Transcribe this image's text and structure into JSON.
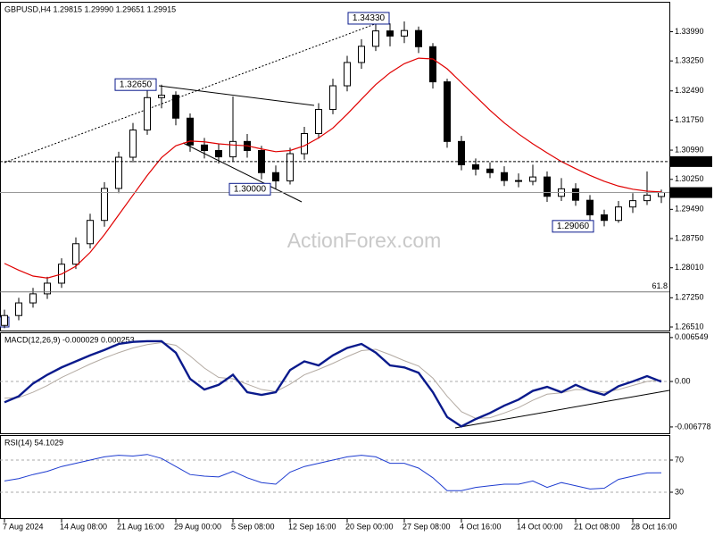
{
  "time_axis": {
    "labels": [
      "7 Aug 2024",
      "14 Aug 08:00",
      "21 Aug 16:00",
      "29 Aug 00:00",
      "5 Sep 08:00",
      "12 Sep 16:00",
      "20 Sep 00:00",
      "27 Sep 08:00",
      "4 Oct 16:00",
      "14 Oct 00:00",
      "21 Oct 08:00",
      "28 Oct 16:00"
    ]
  },
  "chart_data": [
    {
      "type": "candlestick",
      "title": "GBPUSD,H4  1.29815 1.29990 1.29651 1.29915",
      "open": [
        1.2655,
        1.268,
        1.2712,
        1.2735,
        1.2762,
        1.281,
        1.2862,
        1.2921,
        1.3002,
        1.3081,
        1.315,
        1.3232,
        1.3238,
        1.318,
        1.3112,
        1.3098,
        1.3082,
        1.3121,
        1.3098,
        1.3042,
        1.3021,
        1.309,
        1.3141,
        1.3202,
        1.3262,
        1.3321,
        1.3362,
        1.3401,
        1.3388,
        1.3402,
        1.3361,
        1.3272,
        1.3121,
        1.3062,
        1.3051,
        1.3042,
        1.3022,
        1.302,
        1.3031,
        1.2982,
        1.3001,
        1.2972,
        1.2935,
        1.2921,
        1.2955,
        1.2971,
        1.29815
      ],
      "high": [
        1.2695,
        1.2725,
        1.275,
        1.2778,
        1.2825,
        1.2878,
        1.2938,
        1.3018,
        1.3095,
        1.3168,
        1.325,
        1.3265,
        1.3248,
        1.3192,
        1.313,
        1.3115,
        1.3235,
        1.314,
        1.311,
        1.306,
        1.3105,
        1.3158,
        1.3218,
        1.328,
        1.3338,
        1.338,
        1.3433,
        1.342,
        1.3425,
        1.3412,
        1.337,
        1.328,
        1.3135,
        1.3078,
        1.3068,
        1.3058,
        1.304,
        1.3062,
        1.3045,
        1.3028,
        1.3015,
        1.2985,
        1.2948,
        1.297,
        1.299,
        1.3045,
        1.2999
      ],
      "low": [
        1.2648,
        1.2668,
        1.27,
        1.2722,
        1.275,
        1.2798,
        1.285,
        1.2905,
        1.299,
        1.3068,
        1.3138,
        1.3205,
        1.3162,
        1.3095,
        1.3078,
        1.3065,
        1.307,
        1.308,
        1.3025,
        1.3,
        1.3012,
        1.3075,
        1.3128,
        1.319,
        1.3248,
        1.3305,
        1.335,
        1.3362,
        1.337,
        1.3345,
        1.3255,
        1.3105,
        1.3048,
        1.3035,
        1.3028,
        1.3008,
        1.3005,
        1.301,
        1.2968,
        1.297,
        1.2958,
        1.292,
        1.2906,
        1.2915,
        1.294,
        1.296,
        1.29651
      ],
      "close": [
        1.268,
        1.2712,
        1.2735,
        1.2762,
        1.281,
        1.2862,
        1.2921,
        1.3002,
        1.3081,
        1.315,
        1.3232,
        1.3238,
        1.318,
        1.3112,
        1.3098,
        1.3082,
        1.3121,
        1.3098,
        1.3042,
        1.3021,
        1.309,
        1.3141,
        1.3202,
        1.3262,
        1.3321,
        1.3362,
        1.3401,
        1.3388,
        1.3402,
        1.3361,
        1.3272,
        1.3121,
        1.3062,
        1.3051,
        1.3042,
        1.3022,
        1.302,
        1.3031,
        1.2982,
        1.3001,
        1.2972,
        1.2935,
        1.2921,
        1.2955,
        1.2971,
        1.2985,
        1.29915
      ],
      "ma": {
        "color": "#e00000",
        "values": [
          1.2812,
          1.2795,
          1.278,
          1.2775,
          1.2785,
          1.2805,
          1.284,
          1.2885,
          1.2935,
          1.2985,
          1.3035,
          1.308,
          1.311,
          1.3122,
          1.312,
          1.3115,
          1.3112,
          1.311,
          1.3102,
          1.3095,
          1.3098,
          1.311,
          1.313,
          1.3155,
          1.319,
          1.3228,
          1.3265,
          1.3295,
          1.3318,
          1.3332,
          1.333,
          1.3305,
          1.327,
          1.3235,
          1.32,
          1.3168,
          1.314,
          1.3115,
          1.3092,
          1.307,
          1.3052,
          1.3035,
          1.302,
          1.3008,
          1.3,
          1.2995,
          1.2993
        ]
      },
      "ylim": [
        1.2642,
        1.3468
      ],
      "yticks": [
        {
          "value": 1.3399,
          "label": "1.33990"
        },
        {
          "value": 1.3325,
          "label": "1.33250"
        },
        {
          "value": 1.3249,
          "label": "1.32490"
        },
        {
          "value": 1.3175,
          "label": "1.31750"
        },
        {
          "value": 1.3099,
          "label": "1.30990"
        },
        {
          "value": 1.3025,
          "label": "1.30250"
        },
        {
          "value": 1.2949,
          "label": "1.29490"
        },
        {
          "value": 1.2875,
          "label": "1.28750"
        },
        {
          "value": 1.2801,
          "label": "1.28010"
        },
        {
          "value": 1.2725,
          "label": "1.27250"
        },
        {
          "value": 1.2651,
          "label": "1.26510"
        }
      ],
      "levels": [
        {
          "value": 1.307,
          "label": "1.30700",
          "style": "dashed"
        },
        {
          "value": 1.29915,
          "label": "1.29915",
          "style": "solid"
        },
        {
          "value": 1.274,
          "label": "61.8",
          "style": "fib"
        }
      ],
      "annotations": [
        {
          "value": 1.3433,
          "label": "1.34330"
        },
        {
          "value": 1.3265,
          "label": "1.32650"
        },
        {
          "value": 1.3,
          "label": "1.30000"
        },
        {
          "value": 1.2906,
          "label": "1.29060"
        }
      ],
      "edge_label": "0",
      "watermark": "ActionForex.com"
    },
    {
      "type": "macd",
      "title": "MACD(12,26,9) -0.000029 0.000253",
      "series": [
        {
          "color": "#0a1a8c",
          "values": [
            -0.0031,
            -0.0022,
            -0.0003,
            0.001,
            0.0021,
            0.003,
            0.0039,
            0.0047,
            0.0056,
            0.0059,
            0.006,
            0.006,
            0.0043,
            0.0004,
            -0.0012,
            -0.0005,
            0.001,
            -0.0016,
            -0.002,
            -0.0016,
            0.0017,
            0.003,
            0.0024,
            0.0039,
            0.005,
            0.0056,
            0.0043,
            0.0024,
            0.0021,
            0.0013,
            -0.0016,
            -0.0053,
            -0.0067,
            -0.0056,
            -0.0047,
            -0.0036,
            -0.0027,
            -0.0014,
            -0.0008,
            -0.0016,
            -0.0005,
            -0.0014,
            -0.002,
            -0.0007,
            0.0,
            0.0008,
            -3e-05
          ]
        },
        {
          "color": "#b3aaa2",
          "values": [
            -0.0025,
            -0.0024,
            -0.0016,
            -0.0006,
            0.0006,
            0.0016,
            0.0026,
            0.0035,
            0.0043,
            0.005,
            0.0055,
            0.0058,
            0.0054,
            0.0038,
            0.002,
            0.0006,
            0.0004,
            -0.0004,
            -0.0012,
            -0.0015,
            -0.0004,
            0.001,
            0.0018,
            0.0027,
            0.0037,
            0.0046,
            0.0048,
            0.004,
            0.0031,
            0.0023,
            0.0005,
            -0.0022,
            -0.0045,
            -0.0055,
            -0.0054,
            -0.0047,
            -0.0039,
            -0.0028,
            -0.0019,
            -0.0017,
            -0.0012,
            -0.0013,
            -0.0016,
            -0.0012,
            -0.0006,
            0.0,
            0.00025
          ]
        }
      ],
      "ylim": [
        -0.00772,
        0.00733
      ],
      "yticks": [
        0.006549,
        {
          "value": 0,
          "label": "0.00"
        },
        -0.006778
      ]
    },
    {
      "type": "rsi",
      "title": "RSI(14) 54.1029",
      "color": "#1e3cd0",
      "values": [
        44,
        47,
        52,
        56,
        62,
        66,
        70,
        74,
        76,
        75,
        77,
        72,
        62,
        52,
        50,
        49,
        56,
        48,
        42,
        40,
        55,
        62,
        66,
        70,
        74,
        76,
        74,
        66,
        66,
        60,
        48,
        32,
        32,
        36,
        38,
        40,
        40,
        44,
        36,
        42,
        38,
        34,
        35,
        46,
        50,
        54,
        54.1029
      ],
      "ylim": [
        0,
        100
      ],
      "yticks": [
        70,
        30
      ]
    }
  ]
}
